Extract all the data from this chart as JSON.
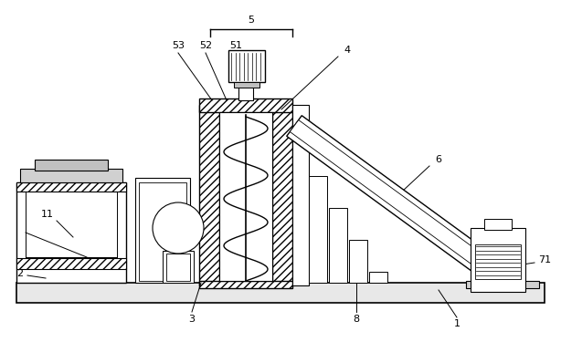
{
  "bg_color": "#ffffff",
  "line_color": "#000000",
  "figure_width": 6.14,
  "figure_height": 3.75,
  "dpi": 100
}
